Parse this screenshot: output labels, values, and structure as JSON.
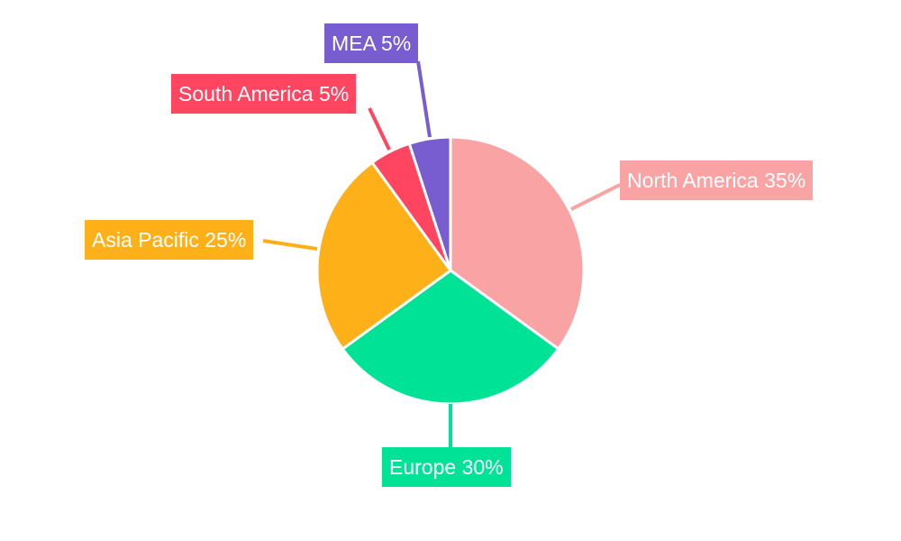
{
  "chart_data": {
    "type": "pie",
    "categories": [
      "North America",
      "Europe",
      "Asia Pacific",
      "South America",
      "MEA"
    ],
    "values": [
      35,
      30,
      25,
      5,
      5
    ],
    "labels": [
      "North America 35%",
      "Europe 30%",
      "Asia Pacific 25%",
      "South America 5%",
      "MEA 5%"
    ],
    "colors": [
      "#f9a3a4",
      "#00e396",
      "#feb019",
      "#ff4560",
      "#775dd0"
    ],
    "start_angle": "top, clockwise",
    "legend": "none"
  }
}
